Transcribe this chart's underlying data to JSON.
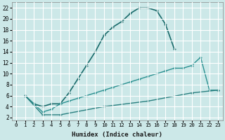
{
  "xlabel": "Humidex (Indice chaleur)",
  "bg_color": "#cce8e8",
  "grid_color": "#ffffff",
  "line_color1": "#1a6b6b",
  "line_color2": "#2a9090",
  "line_color3": "#2a8080",
  "xlim": [
    -0.5,
    23.5
  ],
  "ylim": [
    1.5,
    23
  ],
  "xticks": [
    0,
    1,
    2,
    3,
    4,
    5,
    6,
    7,
    8,
    9,
    10,
    11,
    12,
    13,
    14,
    15,
    16,
    17,
    18,
    19,
    20,
    21,
    22,
    23
  ],
  "yticks": [
    2,
    4,
    6,
    8,
    10,
    12,
    14,
    16,
    18,
    20,
    22
  ],
  "curve1_x": [
    1,
    2,
    3,
    4,
    5,
    6,
    7,
    8,
    9,
    10,
    11,
    12,
    13,
    14,
    15,
    16,
    17,
    18
  ],
  "curve1_y": [
    6.0,
    4.5,
    4.0,
    4.5,
    4.5,
    6.5,
    9.0,
    11.5,
    14.0,
    17.0,
    18.5,
    19.5,
    21.0,
    22.0,
    22.0,
    21.5,
    19.0,
    14.5
  ],
  "curve2_x": [
    1,
    2,
    3,
    4,
    5,
    6,
    7,
    8,
    9,
    10,
    11,
    12,
    13,
    14,
    15,
    16,
    17,
    18,
    19,
    20,
    21,
    22,
    23
  ],
  "curve2_y": [
    6.0,
    4.5,
    3.0,
    3.5,
    4.5,
    5.0,
    5.5,
    6.0,
    6.5,
    7.0,
    7.5,
    8.0,
    8.5,
    9.0,
    9.5,
    10.0,
    10.5,
    11.0,
    11.0,
    11.5,
    13.0,
    7.0,
    7.0
  ],
  "curve3_x": [
    1,
    3,
    5,
    10,
    15,
    20,
    23
  ],
  "curve3_y": [
    6.0,
    2.5,
    2.5,
    4.0,
    5.0,
    6.5,
    7.0
  ]
}
